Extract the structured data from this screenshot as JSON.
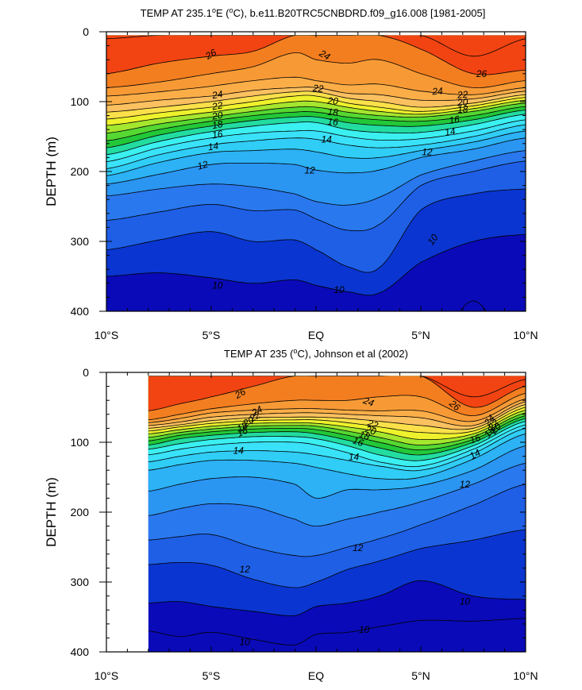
{
  "chart_data": [
    {
      "type": "contour",
      "title": "TEMP AT 235.1°E (°C), b.e11.B20TRC5CNBDRD.f09_g16.008 [1981-2005]",
      "title_parts": {
        "pre": "TEMP AT 235.1",
        "deg1": "o",
        "mid": "E (",
        "deg2": "o",
        "post": "C), b.e11.B20TRC5CNBDRD.f09_g16.008 [1981-2005]"
      },
      "ylabel": "DEPTH (m)",
      "xlabel": "",
      "xlim": [
        -10,
        10
      ],
      "ylim": [
        400,
        0
      ],
      "x_ticks": [
        -10,
        -5,
        0,
        5,
        10
      ],
      "x_tick_labels": [
        "10°S",
        "5°S",
        "EQ",
        "5°N",
        "10°N"
      ],
      "y_ticks": [
        0,
        100,
        200,
        300,
        400
      ],
      "y_tick_labels": [
        "0",
        "100",
        "200",
        "300",
        "400"
      ],
      "data_xlim": [
        -10,
        10
      ],
      "data_ylim": [
        5,
        400
      ],
      "contour_interval": 1,
      "levels": [
        9,
        10,
        11,
        12,
        13,
        14,
        15,
        16,
        17,
        18,
        19,
        20,
        21,
        22,
        23,
        24,
        25,
        26,
        27
      ],
      "x_nodes": [
        -10,
        -7.5,
        -5,
        -3,
        -1,
        0,
        1.5,
        3,
        5,
        7.5,
        10
      ],
      "isotherm_depths": {
        "27": [
          10,
          5,
          5,
          5,
          5,
          5,
          5,
          5,
          5,
          35,
          10
        ],
        "26": [
          60,
          45,
          35,
          28,
          5,
          5,
          5,
          5,
          25,
          60,
          55
        ],
        "25": [
          80,
          72,
          60,
          50,
          30,
          40,
          45,
          40,
          60,
          80,
          70
        ],
        "24": [
          92,
          86,
          78,
          70,
          65,
          70,
          76,
          75,
          85,
          90,
          80
        ],
        "23": [
          105,
          98,
          92,
          84,
          80,
          80,
          88,
          90,
          98,
          96,
          85
        ],
        "22": [
          115,
          108,
          100,
          92,
          86,
          86,
          95,
          100,
          108,
          102,
          90
        ],
        "21": [
          125,
          116,
          108,
          100,
          92,
          92,
          102,
          108,
          114,
          106,
          94
        ],
        "20": [
          134,
          124,
          115,
          107,
          100,
          100,
          108,
          114,
          118,
          110,
          98
        ],
        "19": [
          145,
          132,
          122,
          114,
          108,
          108,
          115,
          120,
          122,
          114,
          102
        ],
        "18": [
          156,
          140,
          128,
          120,
          115,
          115,
          122,
          126,
          128,
          120,
          107
        ],
        "17": [
          166,
          148,
          135,
          127,
          122,
          122,
          130,
          134,
          135,
          126,
          112
        ],
        "16": [
          176,
          157,
          143,
          135,
          130,
          130,
          140,
          144,
          144,
          133,
          118
        ],
        "15": [
          186,
          166,
          152,
          145,
          142,
          142,
          150,
          155,
          153,
          142,
          126
        ],
        "14": [
          196,
          176,
          162,
          156,
          152,
          154,
          162,
          166,
          162,
          150,
          133
        ],
        "13": [
          206,
          187,
          173,
          170,
          168,
          172,
          180,
          180,
          170,
          158,
          142
        ],
        "12": [
          218,
          204,
          190,
          188,
          190,
          198,
          202,
          198,
          180,
          168,
          152
        ],
        "11": [
          235,
          225,
          218,
          222,
          232,
          243,
          248,
          237,
          205,
          185,
          170
        ],
        "10": [
          270,
          258,
          247,
          256,
          255,
          268,
          284,
          276,
          220,
          200,
          185
        ],
        "9": [
          312,
          298,
          286,
          300,
          298,
          312,
          336,
          338,
          255,
          232,
          225
        ],
        "8": [
          350,
          345,
          352,
          360,
          355,
          363,
          372,
          374,
          330,
          300,
          290
        ],
        "7": [
          500,
          500,
          500,
          500,
          500,
          500,
          500,
          500,
          500,
          385,
          500
        ]
      },
      "contour_labels": [
        {
          "text": "26",
          "x": -5.0,
          "y": 33,
          "angle": -30
        },
        {
          "text": "24",
          "x": 0.4,
          "y": 34,
          "angle": 30
        },
        {
          "text": "26",
          "x": 7.9,
          "y": 61,
          "angle": 0
        },
        {
          "text": "24",
          "x": -4.7,
          "y": 91,
          "angle": -10
        },
        {
          "text": "22",
          "x": -4.7,
          "y": 107,
          "angle": -10
        },
        {
          "text": "20",
          "x": -4.7,
          "y": 121,
          "angle": -10
        },
        {
          "text": "18",
          "x": -4.7,
          "y": 134,
          "angle": -10
        },
        {
          "text": "16",
          "x": -4.7,
          "y": 148,
          "angle": -10
        },
        {
          "text": "14",
          "x": -4.9,
          "y": 165,
          "angle": -10
        },
        {
          "text": "12",
          "x": -5.4,
          "y": 192,
          "angle": -15
        },
        {
          "text": "22",
          "x": 0.1,
          "y": 82,
          "angle": 5
        },
        {
          "text": "20",
          "x": 0.8,
          "y": 100,
          "angle": 5
        },
        {
          "text": "18",
          "x": 0.8,
          "y": 116,
          "angle": 5
        },
        {
          "text": "16",
          "x": 0.8,
          "y": 130,
          "angle": 5
        },
        {
          "text": "14",
          "x": 0.5,
          "y": 155,
          "angle": 0
        },
        {
          "text": "12",
          "x": -0.3,
          "y": 199,
          "angle": 0
        },
        {
          "text": "24",
          "x": 5.8,
          "y": 86,
          "angle": -5
        },
        {
          "text": "22",
          "x": 7.0,
          "y": 91,
          "angle": -5
        },
        {
          "text": "20",
          "x": 7.0,
          "y": 102,
          "angle": -5
        },
        {
          "text": "18",
          "x": 7.0,
          "y": 112,
          "angle": -5
        },
        {
          "text": "16",
          "x": 6.6,
          "y": 127,
          "angle": -10
        },
        {
          "text": "14",
          "x": 6.4,
          "y": 144,
          "angle": -10
        },
        {
          "text": "12",
          "x": 5.3,
          "y": 173,
          "angle": 0
        },
        {
          "text": "10",
          "x": 5.6,
          "y": 298,
          "angle": -55
        },
        {
          "text": "10",
          "x": -4.7,
          "y": 364,
          "angle": 0
        },
        {
          "text": "10",
          "x": 1.1,
          "y": 370,
          "angle": 0
        }
      ]
    },
    {
      "type": "contour",
      "title": "TEMP AT 235 (°C), Johnson et al (2002)",
      "title_parts": {
        "pre": "TEMP AT 235 (",
        "deg1": "o",
        "mid": "",
        "deg2": "",
        "post": "C), Johnson et al (2002)"
      },
      "ylabel": "DEPTH (m)",
      "xlabel": "",
      "xlim": [
        -10,
        10
      ],
      "ylim": [
        400,
        0
      ],
      "x_ticks": [
        -10,
        -5,
        0,
        5,
        10
      ],
      "x_tick_labels": [
        "10°S",
        "5°S",
        "EQ",
        "5°N",
        "10°N"
      ],
      "y_ticks": [
        0,
        100,
        200,
        300,
        400
      ],
      "y_tick_labels": [
        "0",
        "100",
        "200",
        "300",
        "400"
      ],
      "data_xlim": [
        -8,
        10
      ],
      "data_ylim": [
        5,
        400
      ],
      "contour_interval": 1,
      "levels": [
        9,
        10,
        11,
        12,
        13,
        14,
        15,
        16,
        17,
        18,
        19,
        20,
        21,
        22,
        23,
        24,
        25,
        26,
        27
      ],
      "x_nodes": [
        -8,
        -6.5,
        -5,
        -3,
        -1,
        0,
        1.5,
        3,
        5,
        7.5,
        10
      ],
      "isotherm_depths": {
        "27": [
          5,
          5,
          5,
          5,
          5,
          5,
          5,
          5,
          5,
          35,
          10
        ],
        "26": [
          55,
          45,
          35,
          20,
          5,
          5,
          5,
          5,
          5,
          50,
          20
        ],
        "25": [
          68,
          60,
          52,
          45,
          40,
          40,
          40,
          35,
          35,
          62,
          30
        ],
        "24": [
          72,
          66,
          58,
          54,
          52,
          52,
          54,
          55,
          55,
          70,
          38
        ],
        "23": [
          76,
          71,
          64,
          60,
          58,
          58,
          60,
          62,
          65,
          76,
          42
        ],
        "22": [
          80,
          75,
          69,
          65,
          64,
          64,
          66,
          70,
          76,
          80,
          46
        ],
        "21": [
          84,
          78,
          73,
          69,
          68,
          68,
          72,
          78,
          86,
          84,
          50
        ],
        "20": [
          88,
          82,
          77,
          73,
          72,
          73,
          78,
          85,
          96,
          88,
          54
        ],
        "19": [
          93,
          86,
          81,
          77,
          76,
          77,
          84,
          93,
          104,
          92,
          58
        ],
        "18": [
          98,
          90,
          85,
          81,
          80,
          82,
          90,
          100,
          111,
          96,
          62
        ],
        "17": [
          104,
          95,
          90,
          86,
          85,
          88,
          97,
          108,
          118,
          100,
          66
        ],
        "16": [
          110,
          102,
          96,
          92,
          92,
          95,
          105,
          118,
          126,
          105,
          70
        ],
        "15": [
          118,
          110,
          104,
          100,
          100,
          104,
          115,
          128,
          134,
          110,
          75
        ],
        "14": [
          128,
          120,
          114,
          112,
          114,
          118,
          126,
          134,
          140,
          116,
          80
        ],
        "13": [
          140,
          132,
          126,
          126,
          130,
          136,
          145,
          152,
          150,
          124,
          88
        ],
        "12": [
          170,
          160,
          152,
          150,
          160,
          180,
          168,
          168,
          162,
          140,
          105
        ],
        "11": [
          205,
          195,
          188,
          192,
          210,
          220,
          210,
          200,
          185,
          160,
          130
        ],
        "10": [
          240,
          235,
          232,
          250,
          262,
          262,
          250,
          238,
          218,
          190,
          160
        ],
        "9": [
          275,
          272,
          276,
          296,
          308,
          300,
          282,
          270,
          252,
          240,
          225
        ],
        "8": [
          330,
          328,
          335,
          342,
          348,
          335,
          330,
          320,
          298,
          320,
          325
        ],
        "7": [
          370,
          378,
          372,
          382,
          390,
          375,
          372,
          364,
          355,
          356,
          352
        ]
      },
      "contour_labels": [
        {
          "text": "26",
          "x": -3.6,
          "y": 31,
          "angle": -30
        },
        {
          "text": "24",
          "x": 2.5,
          "y": 43,
          "angle": 20
        },
        {
          "text": "26",
          "x": 6.6,
          "y": 48,
          "angle": 40
        },
        {
          "text": "24",
          "x": -2.8,
          "y": 56,
          "angle": -30
        },
        {
          "text": "22",
          "x": -2.9,
          "y": 64,
          "angle": -30
        },
        {
          "text": "20",
          "x": -3.2,
          "y": 71,
          "angle": -30
        },
        {
          "text": "18",
          "x": -3.5,
          "y": 79,
          "angle": -30
        },
        {
          "text": "16",
          "x": -3.5,
          "y": 86,
          "angle": -25
        },
        {
          "text": "14",
          "x": -3.7,
          "y": 113,
          "angle": 0
        },
        {
          "text": "22",
          "x": 2.7,
          "y": 75,
          "angle": 20
        },
        {
          "text": "20",
          "x": 2.6,
          "y": 84,
          "angle": 20
        },
        {
          "text": "18",
          "x": 2.3,
          "y": 91,
          "angle": 20
        },
        {
          "text": "16",
          "x": 2.0,
          "y": 100,
          "angle": 20
        },
        {
          "text": "14",
          "x": 1.8,
          "y": 122,
          "angle": 0
        },
        {
          "text": "12",
          "x": 7.1,
          "y": 161,
          "angle": 0
        },
        {
          "text": "24",
          "x": 8.3,
          "y": 69,
          "angle": -50
        },
        {
          "text": "22",
          "x": 8.5,
          "y": 76,
          "angle": -50
        },
        {
          "text": "20",
          "x": 8.6,
          "y": 81,
          "angle": -50
        },
        {
          "text": "18",
          "x": 8.3,
          "y": 86,
          "angle": -50
        },
        {
          "text": "16",
          "x": 7.6,
          "y": 96,
          "angle": -20
        },
        {
          "text": "14",
          "x": 7.6,
          "y": 118,
          "angle": -30
        },
        {
          "text": "12",
          "x": 2.0,
          "y": 252,
          "angle": 0
        },
        {
          "text": "12",
          "x": -3.4,
          "y": 283,
          "angle": 0
        },
        {
          "text": "10",
          "x": 7.1,
          "y": 329,
          "angle": 0
        },
        {
          "text": "10",
          "x": 2.3,
          "y": 369,
          "angle": 0
        },
        {
          "text": "10",
          "x": -3.4,
          "y": 387,
          "angle": 0
        }
      ]
    }
  ],
  "colors": {
    "9": "#0a35d0",
    "10": "#1e5fe6",
    "11": "#2a78ee",
    "12": "#2b95f2",
    "13": "#2cb2f5",
    "14": "#30cdf6",
    "15": "#3ae2f9",
    "16": "#3bf0f0",
    "17": "#22dca0",
    "18": "#22c838",
    "19": "#55d832",
    "20": "#a5e62e",
    "21": "#eef22c",
    "22": "#fbe04a",
    "23": "#fbc060",
    "24": "#fbae48",
    "25": "#f79a36",
    "26": "#f37e20",
    "27": "#f24412",
    "deep": "#0a0ab8",
    "line": "#000000"
  }
}
